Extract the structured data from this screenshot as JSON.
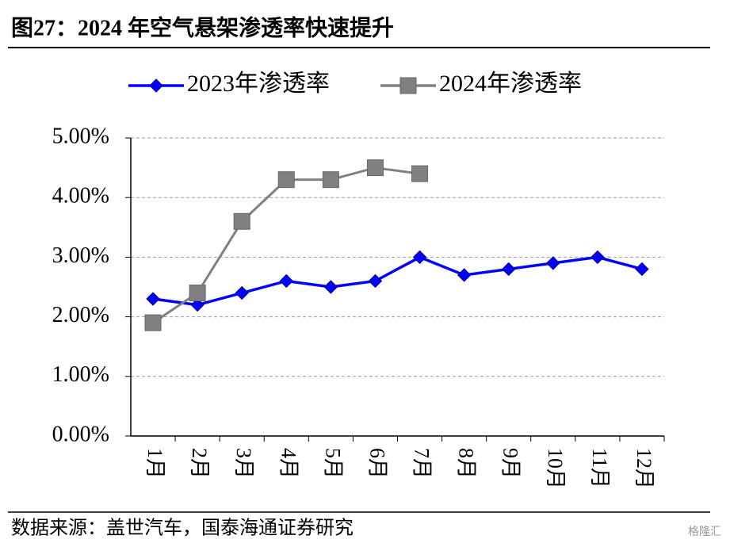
{
  "chart_data": {
    "type": "line",
    "title": "图27：2024 年空气悬架渗透率快速提升",
    "source": "数据来源：盖世汽车，国泰海通证券研究",
    "watermark": "格隆汇",
    "categories": [
      "1月",
      "2月",
      "3月",
      "4月",
      "5月",
      "6月",
      "7月",
      "8月",
      "9月",
      "10月",
      "11月",
      "12月"
    ],
    "series": [
      {
        "name": "2023年渗透率",
        "color": "#0000ff",
        "marker": "diamond",
        "values": [
          2.3,
          2.2,
          2.4,
          2.6,
          2.5,
          2.6,
          3.0,
          2.7,
          2.8,
          2.9,
          3.0,
          2.8
        ]
      },
      {
        "name": "2024年渗透率",
        "color": "#808080",
        "marker": "square",
        "values": [
          1.9,
          2.4,
          3.6,
          4.3,
          4.3,
          4.5,
          4.4,
          null,
          null,
          null,
          null,
          null
        ]
      }
    ],
    "ylim": [
      0,
      5
    ],
    "yticks": [
      {
        "value": 0,
        "label": "0.00%"
      },
      {
        "value": 1,
        "label": "1.00%"
      },
      {
        "value": 2,
        "label": "2.00%"
      },
      {
        "value": 3,
        "label": "3.00%"
      },
      {
        "value": 4,
        "label": "4.00%"
      },
      {
        "value": 5,
        "label": "5.00%"
      }
    ],
    "grid": true,
    "legend": "top"
  }
}
